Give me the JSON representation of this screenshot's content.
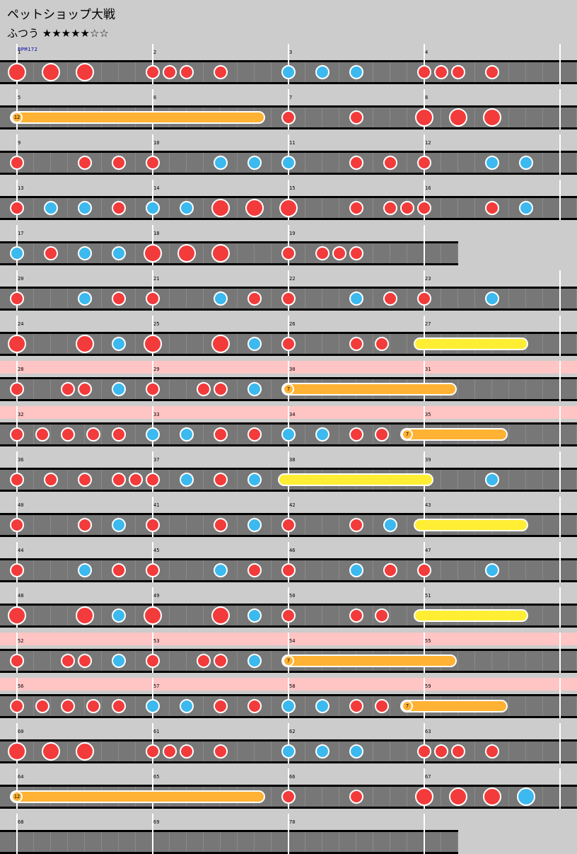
{
  "song": {
    "title": "ペットショップ大戦",
    "difficulty": "ふつう ★★★★★☆☆",
    "bpm": "BPM172"
  },
  "rows": [
    {
      "measures": [
        "1",
        "2",
        "3",
        "4"
      ],
      "notes": [
        {
          "b": 0,
          "t": "DON"
        },
        {
          "b": 2,
          "t": "DON"
        },
        {
          "b": 4,
          "t": "DON"
        },
        {
          "b": 8,
          "t": "don"
        },
        {
          "b": 9,
          "t": "don"
        },
        {
          "b": 10,
          "t": "don"
        },
        {
          "b": 12,
          "t": "don"
        },
        {
          "b": 16,
          "t": "ka"
        },
        {
          "b": 18,
          "t": "ka"
        },
        {
          "b": 20,
          "t": "ka"
        },
        {
          "b": 24,
          "t": "don"
        },
        {
          "b": 25,
          "t": "don"
        },
        {
          "b": 26,
          "t": "don"
        },
        {
          "b": 28,
          "t": "don"
        }
      ]
    },
    {
      "measures": [
        "5",
        "6",
        "7",
        "8"
      ],
      "notes": [
        {
          "b": 16,
          "t": "don"
        },
        {
          "b": 20,
          "t": "don"
        },
        {
          "b": 24,
          "t": "DON"
        },
        {
          "b": 26,
          "t": "DON"
        },
        {
          "b": 28,
          "t": "DON"
        }
      ],
      "balloons": [
        {
          "b0": 0,
          "b1": 14.3,
          "count": "12"
        }
      ]
    },
    {
      "measures": [
        "9",
        "10",
        "11",
        "12"
      ],
      "notes": [
        {
          "b": 0,
          "t": "don"
        },
        {
          "b": 4,
          "t": "don"
        },
        {
          "b": 6,
          "t": "don"
        },
        {
          "b": 8,
          "t": "don"
        },
        {
          "b": 12,
          "t": "ka"
        },
        {
          "b": 14,
          "t": "ka"
        },
        {
          "b": 16,
          "t": "ka"
        },
        {
          "b": 20,
          "t": "don"
        },
        {
          "b": 22,
          "t": "don"
        },
        {
          "b": 24,
          "t": "don"
        },
        {
          "b": 28,
          "t": "ka"
        },
        {
          "b": 30,
          "t": "ka"
        }
      ]
    },
    {
      "measures": [
        "13",
        "14",
        "15",
        "16"
      ],
      "notes": [
        {
          "b": 0,
          "t": "don"
        },
        {
          "b": 2,
          "t": "ka"
        },
        {
          "b": 4,
          "t": "ka"
        },
        {
          "b": 6,
          "t": "don"
        },
        {
          "b": 8,
          "t": "ka"
        },
        {
          "b": 10,
          "t": "ka"
        },
        {
          "b": 12,
          "t": "DON"
        },
        {
          "b": 14,
          "t": "DON"
        },
        {
          "b": 16,
          "t": "DON"
        },
        {
          "b": 20,
          "t": "don"
        },
        {
          "b": 22,
          "t": "don"
        },
        {
          "b": 23,
          "t": "don"
        },
        {
          "b": 24,
          "t": "don"
        },
        {
          "b": 28,
          "t": "don"
        },
        {
          "b": 30,
          "t": "ka"
        }
      ]
    },
    {
      "measures": [
        "17",
        "18",
        "19"
      ],
      "len": 26,
      "notes": [
        {
          "b": 0,
          "t": "ka"
        },
        {
          "b": 2,
          "t": "don"
        },
        {
          "b": 4,
          "t": "ka"
        },
        {
          "b": 6,
          "t": "ka"
        },
        {
          "b": 8,
          "t": "DON"
        },
        {
          "b": 10,
          "t": "DON"
        },
        {
          "b": 12,
          "t": "DON"
        },
        {
          "b": 16,
          "t": "don"
        },
        {
          "b": 18,
          "t": "don"
        },
        {
          "b": 19,
          "t": "don"
        },
        {
          "b": 20,
          "t": "don"
        }
      ]
    },
    {
      "measures": [
        "20",
        "21",
        "22",
        "23"
      ],
      "notes": [
        {
          "b": 0,
          "t": "don"
        },
        {
          "b": 4,
          "t": "ka"
        },
        {
          "b": 6,
          "t": "don"
        },
        {
          "b": 8,
          "t": "don"
        },
        {
          "b": 12,
          "t": "ka"
        },
        {
          "b": 14,
          "t": "don"
        },
        {
          "b": 16,
          "t": "don"
        },
        {
          "b": 20,
          "t": "ka"
        },
        {
          "b": 22,
          "t": "don"
        },
        {
          "b": 24,
          "t": "don"
        },
        {
          "b": 28,
          "t": "ka"
        }
      ]
    },
    {
      "measures": [
        "24",
        "25",
        "26",
        "27"
      ],
      "notes": [
        {
          "b": 0,
          "t": "DON"
        },
        {
          "b": 4,
          "t": "DON"
        },
        {
          "b": 6,
          "t": "ka"
        },
        {
          "b": 8,
          "t": "DON"
        },
        {
          "b": 12,
          "t": "DON"
        },
        {
          "b": 14,
          "t": "ka"
        },
        {
          "b": 16,
          "t": "don"
        },
        {
          "b": 20,
          "t": "don"
        },
        {
          "b": 21.5,
          "t": "don"
        }
      ],
      "rolls": [
        {
          "b0": 23.7,
          "b1": 29.8,
          "c": "yellow"
        }
      ]
    },
    {
      "measures": [
        "28",
        "29",
        "30",
        "31"
      ],
      "gogo": true,
      "notes": [
        {
          "b": 0,
          "t": "don"
        },
        {
          "b": 3,
          "t": "don"
        },
        {
          "b": 4,
          "t": "don"
        },
        {
          "b": 6,
          "t": "ka"
        },
        {
          "b": 8,
          "t": "don"
        },
        {
          "b": 11,
          "t": "don"
        },
        {
          "b": 12,
          "t": "don"
        },
        {
          "b": 14,
          "t": "ka"
        }
      ],
      "balloons": [
        {
          "b0": 16,
          "b1": 25.6,
          "count": "7"
        }
      ]
    },
    {
      "measures": [
        "32",
        "33",
        "34",
        "35"
      ],
      "gogo": true,
      "notes": [
        {
          "b": 0,
          "t": "don"
        },
        {
          "b": 1.5,
          "t": "don"
        },
        {
          "b": 3,
          "t": "don"
        },
        {
          "b": 4.5,
          "t": "don"
        },
        {
          "b": 6,
          "t": "don"
        },
        {
          "b": 8,
          "t": "ka"
        },
        {
          "b": 10,
          "t": "ka"
        },
        {
          "b": 12,
          "t": "don"
        },
        {
          "b": 14,
          "t": "don"
        },
        {
          "b": 16,
          "t": "ka"
        },
        {
          "b": 18,
          "t": "ka"
        },
        {
          "b": 20,
          "t": "don"
        },
        {
          "b": 21.5,
          "t": "don"
        }
      ],
      "balloons": [
        {
          "b0": 23,
          "b1": 28.6,
          "count": "7"
        }
      ]
    },
    {
      "measures": [
        "36",
        "37",
        "38",
        "39"
      ],
      "notes": [
        {
          "b": 0,
          "t": "don"
        },
        {
          "b": 2,
          "t": "don"
        },
        {
          "b": 4,
          "t": "don"
        },
        {
          "b": 6,
          "t": "don"
        },
        {
          "b": 7,
          "t": "don"
        },
        {
          "b": 8,
          "t": "don"
        },
        {
          "b": 10,
          "t": "ka"
        },
        {
          "b": 12,
          "t": "don"
        },
        {
          "b": 14,
          "t": "ka"
        },
        {
          "b": 28,
          "t": "ka"
        }
      ],
      "rolls": [
        {
          "b0": 15.7,
          "b1": 24.2,
          "c": "yellow"
        }
      ]
    },
    {
      "measures": [
        "40",
        "41",
        "42",
        "43"
      ],
      "notes": [
        {
          "b": 0,
          "t": "don"
        },
        {
          "b": 4,
          "t": "don"
        },
        {
          "b": 6,
          "t": "ka"
        },
        {
          "b": 8,
          "t": "don"
        },
        {
          "b": 12,
          "t": "don"
        },
        {
          "b": 14,
          "t": "ka"
        },
        {
          "b": 16,
          "t": "don"
        },
        {
          "b": 20,
          "t": "don"
        },
        {
          "b": 22,
          "t": "ka"
        }
      ],
      "rolls": [
        {
          "b0": 23.7,
          "b1": 29.8,
          "c": "yellow"
        }
      ]
    },
    {
      "measures": [
        "44",
        "45",
        "46",
        "47"
      ],
      "notes": [
        {
          "b": 0,
          "t": "don"
        },
        {
          "b": 4,
          "t": "ka"
        },
        {
          "b": 6,
          "t": "don"
        },
        {
          "b": 8,
          "t": "don"
        },
        {
          "b": 12,
          "t": "ka"
        },
        {
          "b": 14,
          "t": "don"
        },
        {
          "b": 16,
          "t": "don"
        },
        {
          "b": 20,
          "t": "ka"
        },
        {
          "b": 22,
          "t": "don"
        },
        {
          "b": 24,
          "t": "don"
        },
        {
          "b": 28,
          "t": "ka"
        }
      ]
    },
    {
      "measures": [
        "48",
        "49",
        "50",
        "51"
      ],
      "notes": [
        {
          "b": 0,
          "t": "DON"
        },
        {
          "b": 4,
          "t": "DON"
        },
        {
          "b": 6,
          "t": "ka"
        },
        {
          "b": 8,
          "t": "DON"
        },
        {
          "b": 12,
          "t": "DON"
        },
        {
          "b": 14,
          "t": "ka"
        },
        {
          "b": 16,
          "t": "don"
        },
        {
          "b": 20,
          "t": "don"
        },
        {
          "b": 21.5,
          "t": "don"
        }
      ],
      "rolls": [
        {
          "b0": 23.7,
          "b1": 29.8,
          "c": "yellow"
        }
      ]
    },
    {
      "measures": [
        "52",
        "53",
        "54",
        "55"
      ],
      "gogo": true,
      "notes": [
        {
          "b": 0,
          "t": "don"
        },
        {
          "b": 3,
          "t": "don"
        },
        {
          "b": 4,
          "t": "don"
        },
        {
          "b": 6,
          "t": "ka"
        },
        {
          "b": 8,
          "t": "don"
        },
        {
          "b": 11,
          "t": "don"
        },
        {
          "b": 12,
          "t": "don"
        },
        {
          "b": 14,
          "t": "ka"
        }
      ],
      "balloons": [
        {
          "b0": 16,
          "b1": 25.6,
          "count": "7"
        }
      ]
    },
    {
      "measures": [
        "56",
        "57",
        "58",
        "59"
      ],
      "gogo": true,
      "notes": [
        {
          "b": 0,
          "t": "don"
        },
        {
          "b": 1.5,
          "t": "don"
        },
        {
          "b": 3,
          "t": "don"
        },
        {
          "b": 4.5,
          "t": "don"
        },
        {
          "b": 6,
          "t": "don"
        },
        {
          "b": 8,
          "t": "ka"
        },
        {
          "b": 10,
          "t": "ka"
        },
        {
          "b": 12,
          "t": "don"
        },
        {
          "b": 14,
          "t": "don"
        },
        {
          "b": 16,
          "t": "ka"
        },
        {
          "b": 18,
          "t": "ka"
        },
        {
          "b": 20,
          "t": "don"
        },
        {
          "b": 21.5,
          "t": "don"
        }
      ],
      "balloons": [
        {
          "b0": 23,
          "b1": 28.6,
          "count": "7"
        }
      ]
    },
    {
      "measures": [
        "60",
        "61",
        "62",
        "63"
      ],
      "notes": [
        {
          "b": 0,
          "t": "DON"
        },
        {
          "b": 2,
          "t": "DON"
        },
        {
          "b": 4,
          "t": "DON"
        },
        {
          "b": 8,
          "t": "don"
        },
        {
          "b": 9,
          "t": "don"
        },
        {
          "b": 10,
          "t": "don"
        },
        {
          "b": 12,
          "t": "don"
        },
        {
          "b": 16,
          "t": "ka"
        },
        {
          "b": 18,
          "t": "ka"
        },
        {
          "b": 20,
          "t": "ka"
        },
        {
          "b": 24,
          "t": "don"
        },
        {
          "b": 25,
          "t": "don"
        },
        {
          "b": 26,
          "t": "don"
        },
        {
          "b": 28,
          "t": "don"
        }
      ]
    },
    {
      "measures": [
        "64",
        "65",
        "66",
        "67"
      ],
      "notes": [
        {
          "b": 16,
          "t": "don"
        },
        {
          "b": 20,
          "t": "don"
        },
        {
          "b": 24,
          "t": "DON"
        },
        {
          "b": 26,
          "t": "DON"
        },
        {
          "b": 28,
          "t": "DON"
        },
        {
          "b": 30,
          "t": "KA"
        }
      ],
      "balloons": [
        {
          "b0": 0,
          "b1": 14.3,
          "count": "12"
        }
      ]
    },
    {
      "measures": [
        "68",
        "69",
        "70"
      ],
      "len": 26,
      "notes": []
    }
  ]
}
